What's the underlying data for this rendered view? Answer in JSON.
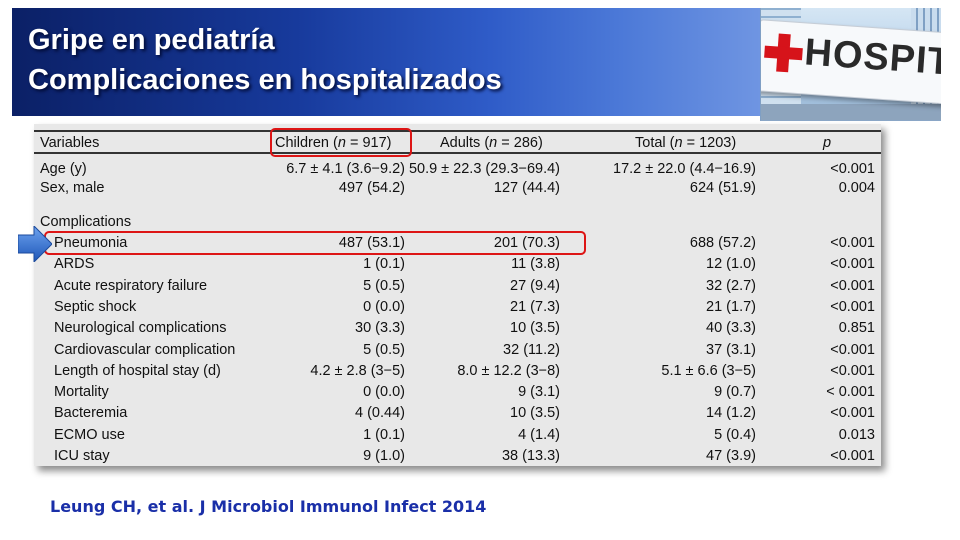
{
  "title": {
    "line1": "Gripe en pediatría",
    "line2": "Complicaciones en hospitalizados"
  },
  "photo": {
    "sign_text": "HOSPITA",
    "icon": "red-cross-icon"
  },
  "table": {
    "header": {
      "variables": "Variables",
      "children_prefix": "Children (",
      "children_n": "n",
      "children_suffix": " = 917)",
      "adults_prefix": "Adults (",
      "adults_n": "n",
      "adults_suffix": " = 286)",
      "total_prefix": "Total (",
      "total_n": "n",
      "total_suffix": " = 1203)",
      "p": "p"
    },
    "top_rows": [
      {
        "label": "Age (y)",
        "children": "6.7 ± 4.1 (3.6−9.2)",
        "adults": "50.9 ± 22.3 (29.3−69.4)",
        "total": "17.2 ± 22.0 (4.4−16.9)",
        "p": "<0.001"
      },
      {
        "label": "Sex, male",
        "children": "497 (54.2)",
        "adults": "127 (44.4)",
        "total": "624 (51.9)",
        "p": "0.004"
      }
    ],
    "section_label": "Complications",
    "complications": [
      {
        "label": "Pneumonia",
        "children": "487 (53.1)",
        "adults": "201 (70.3)",
        "total": "688 (57.2)",
        "p": "<0.001"
      },
      {
        "label": "ARDS",
        "children": "1 (0.1)",
        "adults": "11 (3.8)",
        "total": "12 (1.0)",
        "p": "<0.001"
      },
      {
        "label": "Acute respiratory failure",
        "children": "5 (0.5)",
        "adults": "27 (9.4)",
        "total": "32 (2.7)",
        "p": "<0.001"
      },
      {
        "label": "Septic shock",
        "children": "0 (0.0)",
        "adults": "21 (7.3)",
        "total": "21 (1.7)",
        "p": "<0.001"
      },
      {
        "label": "Neurological complications",
        "children": "30 (3.3)",
        "adults": "10 (3.5)",
        "total": "40 (3.3)",
        "p": "0.851"
      },
      {
        "label": "Cardiovascular complication",
        "children": "5 (0.5)",
        "adults": "32 (11.2)",
        "total": "37 (3.1)",
        "p": "<0.001"
      },
      {
        "label": "Length of hospital stay (d)",
        "children": "4.2 ± 2.8 (3−5)",
        "adults": "8.0 ± 12.2 (3−8)",
        "total": "5.1 ± 6.6 (3−5)",
        "p": "<0.001"
      },
      {
        "label": "Mortality",
        "children": "0 (0.0)",
        "adults": "9 (3.1)",
        "total": "9 (0.7)",
        "p": "< 0.001"
      },
      {
        "label": "Bacteremia",
        "children": "4 (0.44)",
        "adults": "10 (3.5)",
        "total": "14 (1.2)",
        "p": "<0.001"
      },
      {
        "label": "ECMO use",
        "children": "1 (0.1)",
        "adults": "4 (1.4)",
        "total": "5 (0.4)",
        "p": "0.013"
      },
      {
        "label": "ICU stay",
        "children": "9 (1.0)",
        "adults": "38 (13.3)",
        "total": "47 (3.9)",
        "p": "<0.001"
      }
    ]
  },
  "highlights": {
    "color": "#dd1515",
    "arrow_color": "#2f6fd0",
    "arrow_icon": "right-arrow-icon"
  },
  "citation": "Leung CH, et al. J Microbiol Immunol Infect 2014"
}
